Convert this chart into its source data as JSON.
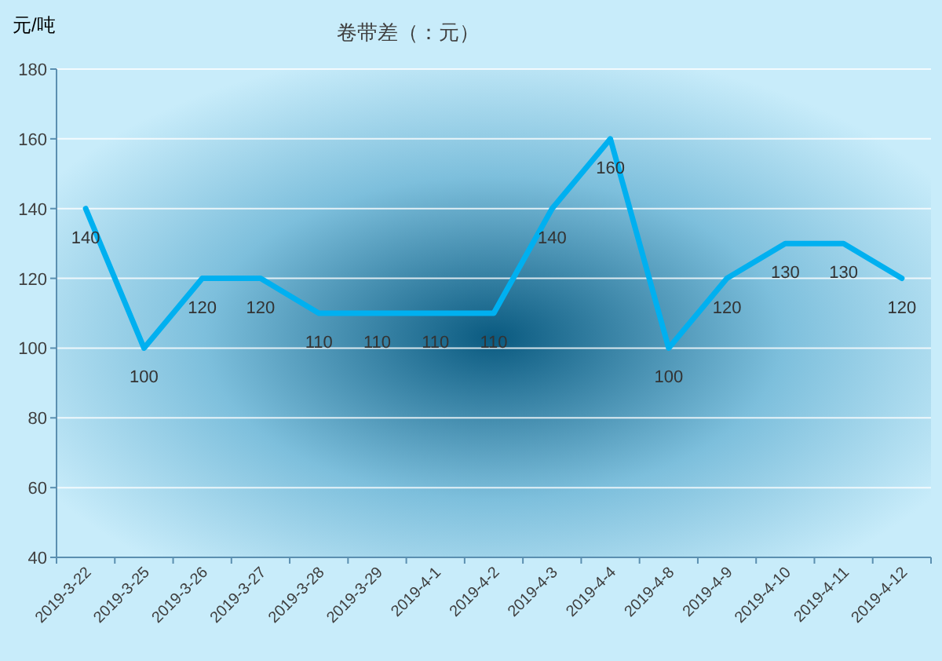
{
  "chart_data": {
    "type": "line",
    "title": "卷带差（：元）",
    "ylabel": "元/吨",
    "categories": [
      "2019-3-22",
      "2019-3-25",
      "2019-3-26",
      "2019-3-27",
      "2019-3-28",
      "2019-3-29",
      "2019-4-1",
      "2019-4-2",
      "2019-4-3",
      "2019-4-4",
      "2019-4-8",
      "2019-4-9",
      "2019-4-10",
      "2019-4-11",
      "2019-4-12"
    ],
    "series": [
      {
        "color": "#00b0f0",
        "values": [
          140,
          100,
          120,
          120,
          110,
          110,
          110,
          110,
          140,
          160,
          100,
          120,
          130,
          130,
          120
        ]
      }
    ],
    "ylim": [
      40,
      180
    ],
    "yticks": [
      40,
      60,
      80,
      100,
      120,
      140,
      160,
      180
    ],
    "grid": "y",
    "data_labels": true,
    "marker": "none"
  }
}
